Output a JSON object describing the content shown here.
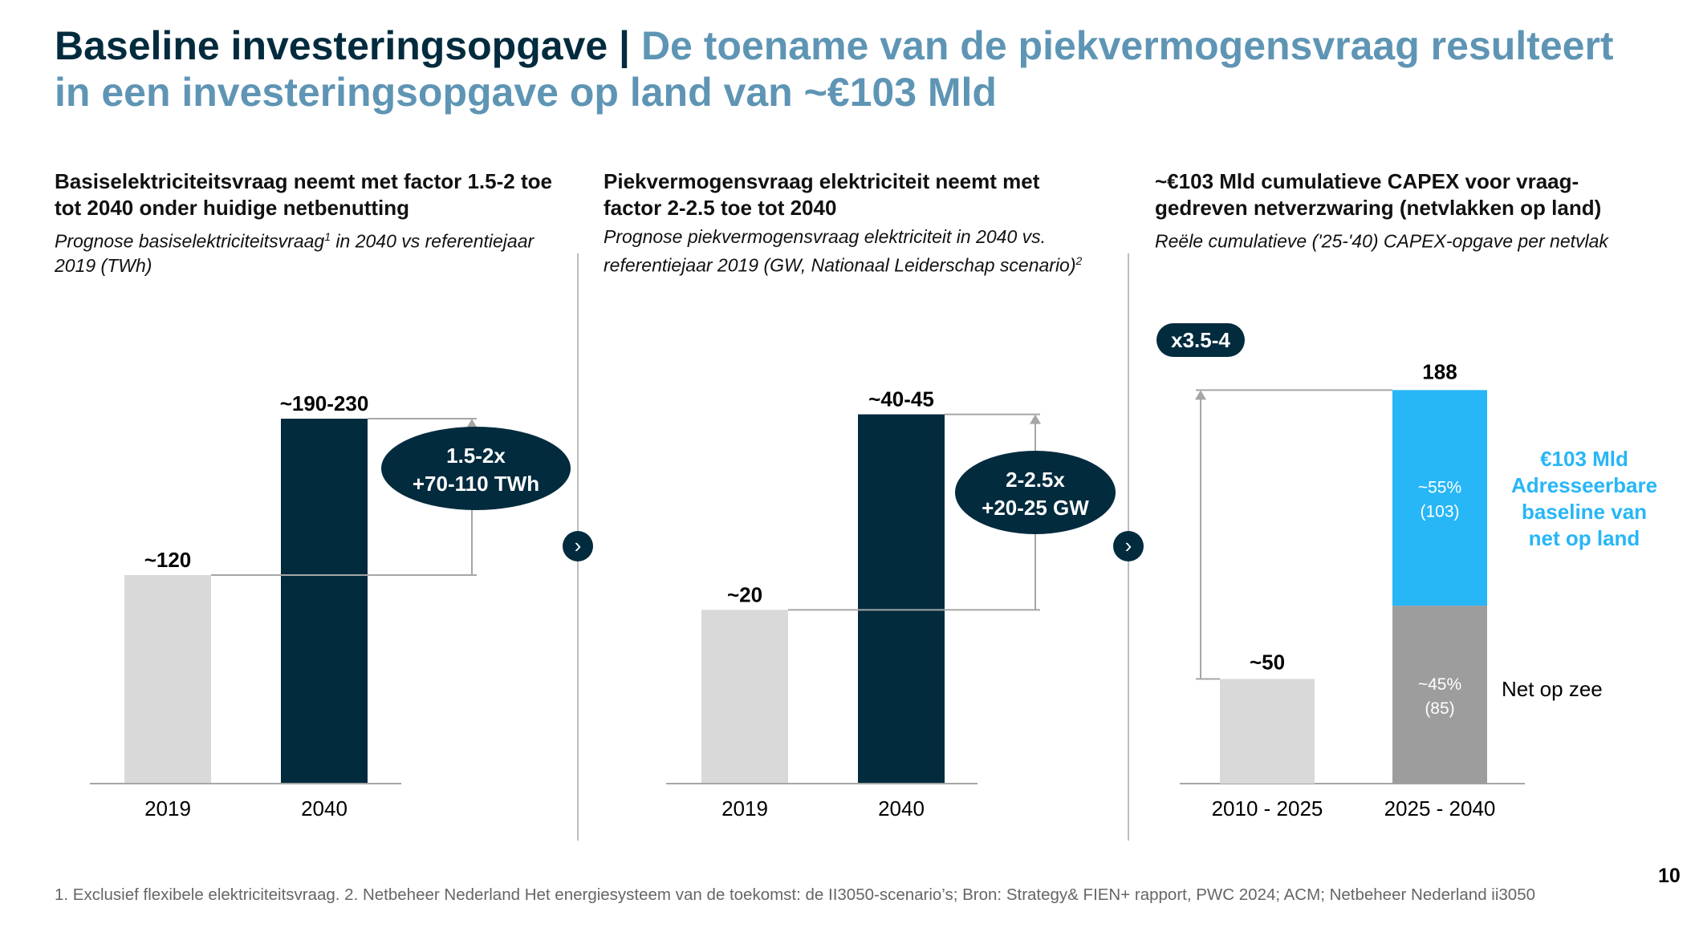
{
  "title": {
    "part1": "Baseline investeringsopgave | ",
    "part2": "De toename van de piekvermogensvraag resulteert in een investeringsopgave op land van ~€103 Mld"
  },
  "colors": {
    "dark_navy": "#022b3e",
    "light_blue_title": "#5f95b4",
    "bar_light_gray": "#d9d9d9",
    "bar_mid_gray": "#9d9d9d",
    "bar_cyan": "#27b6f6",
    "line_gray": "#a6a6a6"
  },
  "panels": [
    {
      "heading": "Basiselektriciteitsvraag neemt met factor 1.5-2 toe tot 2040 onder huidige netbenutting",
      "subtitle_pre": "Prognose basiselektriciteitsvraag",
      "subtitle_sup": "1",
      "subtitle_post": " in 2040 vs referentiejaar 2019 (TWh)"
    },
    {
      "heading": "Piekvermogensvraag elektriciteit neemt met factor 2-2.5 toe tot 2040",
      "subtitle_pre": "Prognose piekvermogensvraag elektriciteit in 2040 vs. referentiejaar 2019 (GW, Nationaal Leiderschap scenario)",
      "subtitle_sup": "2",
      "subtitle_post": ""
    },
    {
      "heading": "~€103 Mld cumulatieve CAPEX voor vraag-gedreven netverzwaring (netvlakken op land)",
      "subtitle_pre": "Reële cumulatieve ('25-'40) CAPEX-opgave per netvlak",
      "subtitle_sup": "",
      "subtitle_post": ""
    }
  ],
  "chevron_icon": "›",
  "chart_data": [
    {
      "type": "bar",
      "title": "Prognose basiselektriciteitsvraag in 2040 vs referentiejaar 2019",
      "ylabel": "TWh",
      "categories": [
        "2019",
        "2040"
      ],
      "values": [
        120,
        210
      ],
      "value_labels": [
        "~120",
        "~190-230"
      ],
      "ylim": [
        0,
        240
      ],
      "annotation": {
        "line1": "1.5-2x",
        "line2": "+70-110 TWh"
      }
    },
    {
      "type": "bar",
      "title": "Prognose piekvermogensvraag elektriciteit in 2040 vs. referentiejaar 2019",
      "ylabel": "GW",
      "categories": [
        "2019",
        "2040"
      ],
      "values": [
        20,
        42.5
      ],
      "value_labels": [
        "~20",
        "~40-45"
      ],
      "ylim": [
        0,
        48
      ],
      "annotation": {
        "line1": "2-2.5x",
        "line2": "+20-25 GW"
      }
    },
    {
      "type": "bar",
      "stacked": true,
      "title": "Reële cumulatieve ('25-'40) CAPEX-opgave per netvlak",
      "ylabel": "€ Mld",
      "categories": [
        "2010 - 2025",
        "2025 - 2040"
      ],
      "totals": [
        50,
        188
      ],
      "total_labels": [
        "~50",
        "188"
      ],
      "ylim": [
        0,
        200
      ],
      "series": [
        {
          "name": "Net op zee",
          "values": [
            50,
            85
          ],
          "pct_label": "~45%",
          "abs_label": "(85)"
        },
        {
          "name": "€103 Mld Adresseerbare baseline van net op land",
          "values": [
            0,
            103
          ],
          "pct_label": "~55%",
          "abs_label": "(103)"
        }
      ],
      "legend": {
        "land_lines": [
          "€103 Mld",
          "Adresseerbare",
          "baseline van",
          "net op land"
        ],
        "sea": "Net op zee"
      },
      "multiplier": "x3.5-4"
    }
  ],
  "footnote": "1. Exclusief flexibele elektriciteitsvraag. 2. Netbeheer Nederland Het energiesysteem van de toekomst: de II3050-scenario’s; Bron: Strategy& FIEN+ rapport, PWC 2024; ACM; Netbeheer Nederland ii3050",
  "page_number": "10"
}
